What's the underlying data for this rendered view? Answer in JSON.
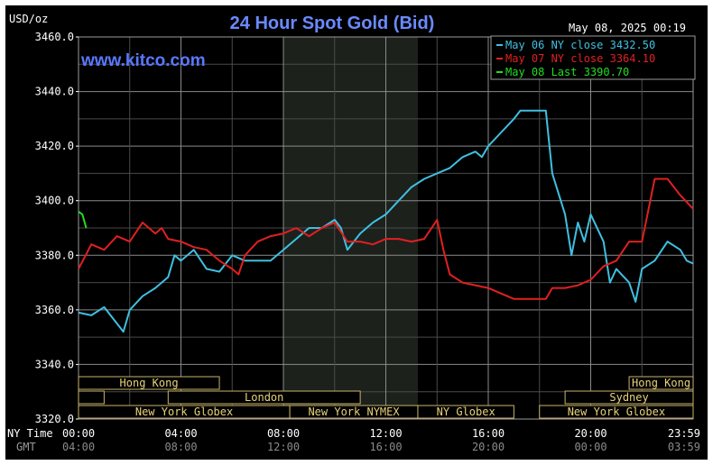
{
  "chart_data": {
    "type": "line",
    "title": "24 Hour Spot Gold (Bid)",
    "watermark": "www.kitco.com",
    "timestamp": "May 08, 2025 00:19",
    "ylabel": "USD/oz",
    "ylim": [
      3320,
      3460
    ],
    "yticks": [
      "3460.0",
      "3440.0",
      "3420.0",
      "3400.0",
      "3380.0",
      "3360.0",
      "3340.0",
      "3320.0"
    ],
    "x_rows": {
      "ny_label": "NY Time",
      "gmt_label": "GMT",
      "ny": [
        "00:00",
        "04:00",
        "08:00",
        "12:00",
        "16:00",
        "20:00",
        "23:59"
      ],
      "gmt": [
        "04:00",
        "08:00",
        "12:00",
        "16:00",
        "20:00",
        "00:00",
        "03:59"
      ]
    },
    "xlim_hours": [
      0,
      24
    ],
    "grid": true,
    "legend_placement": "top-right",
    "session_highlight": [
      8,
      13.25
    ],
    "sessions": [
      {
        "label": "Hong Kong",
        "start": 0,
        "end": 5.5,
        "row": 1
      },
      {
        "label": "",
        "start": 0,
        "end": 1,
        "row": 2
      },
      {
        "label": "London",
        "start": 3.5,
        "end": 11,
        "row": 2
      },
      {
        "label": "New York Globex",
        "start": 0,
        "end": 8.25,
        "row": 3
      },
      {
        "label": "New York NYMEX",
        "start": 8.25,
        "end": 13.25,
        "row": 3
      },
      {
        "label": "NY Globex",
        "start": 13.25,
        "end": 17,
        "row": 3
      },
      {
        "label": "Hong Kong",
        "start": 21.5,
        "end": 24,
        "row": 1
      },
      {
        "label": "Sydney",
        "start": 19,
        "end": 24,
        "row": 2
      },
      {
        "label": "New York Globex",
        "start": 18,
        "end": 24,
        "row": 3
      }
    ],
    "series": [
      {
        "name": "May 06 NY close 3432.50",
        "color": "#3fc0e0",
        "points": [
          [
            0,
            3359
          ],
          [
            0.5,
            3358
          ],
          [
            1,
            3361
          ],
          [
            1.5,
            3355
          ],
          [
            1.75,
            3352
          ],
          [
            2,
            3360
          ],
          [
            2.5,
            3365
          ],
          [
            3,
            3368
          ],
          [
            3.5,
            3372
          ],
          [
            3.75,
            3380
          ],
          [
            4,
            3378
          ],
          [
            4.5,
            3382
          ],
          [
            5,
            3375
          ],
          [
            5.5,
            3374
          ],
          [
            6,
            3380
          ],
          [
            6.5,
            3378
          ],
          [
            7,
            3378
          ],
          [
            7.5,
            3378
          ],
          [
            8,
            3382
          ],
          [
            8.5,
            3386
          ],
          [
            9,
            3390
          ],
          [
            9.5,
            3390
          ],
          [
            10,
            3393
          ],
          [
            10.25,
            3390
          ],
          [
            10.5,
            3382
          ],
          [
            11,
            3388
          ],
          [
            11.5,
            3392
          ],
          [
            12,
            3395
          ],
          [
            12.5,
            3400
          ],
          [
            13,
            3405
          ],
          [
            13.5,
            3408
          ],
          [
            14,
            3410
          ],
          [
            14.5,
            3412
          ],
          [
            15,
            3416
          ],
          [
            15.5,
            3418
          ],
          [
            15.75,
            3416
          ],
          [
            16,
            3420
          ],
          [
            16.5,
            3425
          ],
          [
            17,
            3430
          ],
          [
            17.25,
            3433
          ],
          [
            18.25,
            3433
          ],
          [
            18.5,
            3410
          ],
          [
            19,
            3395
          ],
          [
            19.25,
            3380
          ],
          [
            19.5,
            3392
          ],
          [
            19.75,
            3385
          ],
          [
            20,
            3395
          ],
          [
            20.5,
            3385
          ],
          [
            20.75,
            3370
          ],
          [
            21,
            3375
          ],
          [
            21.5,
            3370
          ],
          [
            21.75,
            3363
          ],
          [
            22,
            3375
          ],
          [
            22.5,
            3378
          ],
          [
            23,
            3385
          ],
          [
            23.5,
            3382
          ],
          [
            23.75,
            3378
          ],
          [
            24,
            3377
          ]
        ]
      },
      {
        "name": "May 07 NY close 3364.10",
        "color": "#e02020",
        "points": [
          [
            0,
            3375
          ],
          [
            0.5,
            3384
          ],
          [
            1,
            3382
          ],
          [
            1.5,
            3387
          ],
          [
            2,
            3385
          ],
          [
            2.5,
            3392
          ],
          [
            3,
            3388
          ],
          [
            3.25,
            3390
          ],
          [
            3.5,
            3386
          ],
          [
            4,
            3385
          ],
          [
            4.5,
            3383
          ],
          [
            5,
            3382
          ],
          [
            5.5,
            3378
          ],
          [
            6,
            3375
          ],
          [
            6.25,
            3373
          ],
          [
            6.5,
            3380
          ],
          [
            7,
            3385
          ],
          [
            7.5,
            3387
          ],
          [
            8,
            3388
          ],
          [
            8.5,
            3390
          ],
          [
            9,
            3387
          ],
          [
            9.5,
            3390
          ],
          [
            10,
            3392
          ],
          [
            10.5,
            3385
          ],
          [
            11,
            3385
          ],
          [
            11.5,
            3384
          ],
          [
            12,
            3386
          ],
          [
            12.5,
            3386
          ],
          [
            13,
            3385
          ],
          [
            13.5,
            3386
          ],
          [
            14,
            3393
          ],
          [
            14.25,
            3382
          ],
          [
            14.5,
            3373
          ],
          [
            15,
            3370
          ],
          [
            15.5,
            3369
          ],
          [
            16,
            3368
          ],
          [
            16.5,
            3366
          ],
          [
            17,
            3364
          ],
          [
            18.25,
            3364
          ],
          [
            18.5,
            3368
          ],
          [
            19,
            3368
          ],
          [
            19.5,
            3369
          ],
          [
            20,
            3371
          ],
          [
            20.5,
            3376
          ],
          [
            21,
            3378
          ],
          [
            21.5,
            3385
          ],
          [
            22,
            3385
          ],
          [
            22.5,
            3408
          ],
          [
            23,
            3408
          ],
          [
            23.5,
            3402
          ],
          [
            24,
            3397
          ]
        ]
      },
      {
        "name": "May 08 Last 3390.70",
        "color": "#22dd22",
        "points": [
          [
            0,
            3396
          ],
          [
            0.15,
            3395
          ],
          [
            0.3,
            3390
          ]
        ]
      }
    ]
  }
}
